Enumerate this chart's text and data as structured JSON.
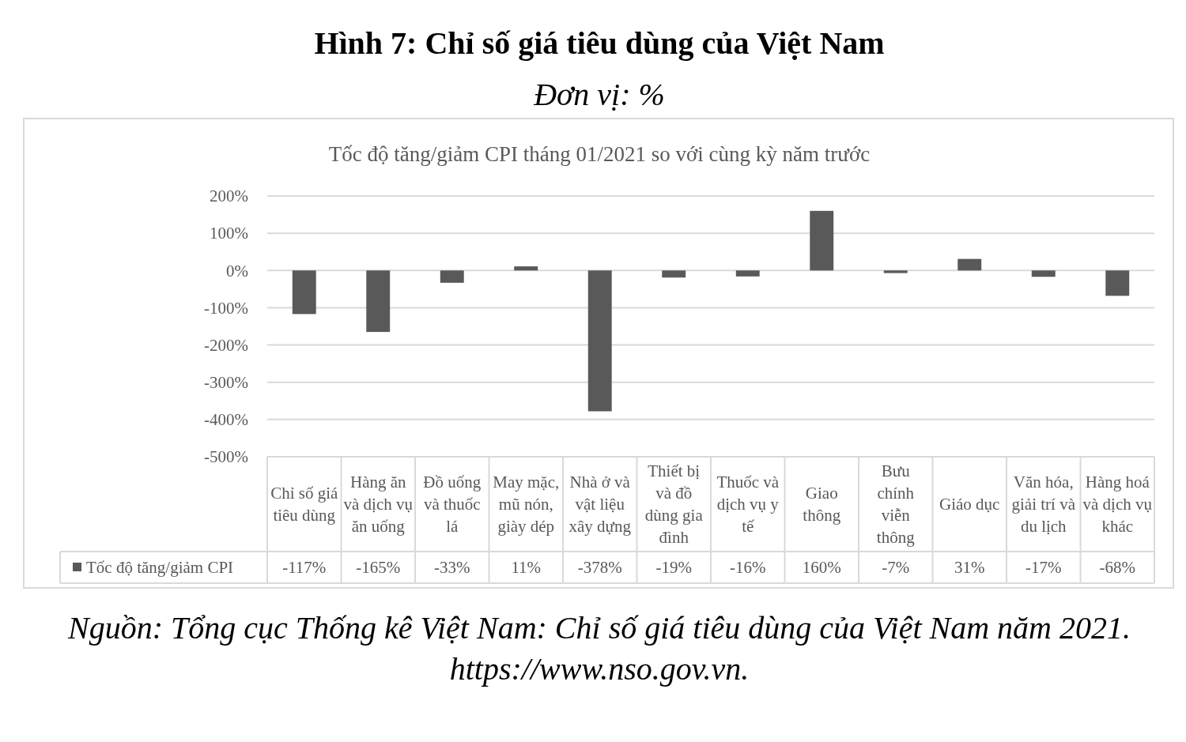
{
  "chart_data": {
    "type": "bar",
    "title": "Hình 7: Chỉ số giá tiêu dùng của Việt Nam",
    "subtitle": "Đơn vị: %",
    "annotations": [
      "Tốc độ tăng/giảm CPI tháng 01/2021  so với cùng kỳ năm trước",
      "Nguồn: Tổng cục Thống kê Việt Nam: Chỉ số giá tiêu dùng của Việt Nam năm 2021. https://www.nso.gov.vn."
    ],
    "categories": [
      "Chỉ số giá tiêu dùng",
      "Hàng ăn và dịch vụ ăn uống",
      "Đồ uống và thuốc lá",
      "May mặc, mũ nón, giày dép",
      "Nhà ở và vật liệu xây dựng",
      "Thiết bị và đồ dùng gia đình",
      "Thuốc và dịch vụ y tế",
      "Giao thông",
      "Bưu chính viễn thông",
      "Giáo dục",
      "Văn hóa, giải trí và du lịch",
      "Hàng hoá và dịch vụ khác"
    ],
    "series": [
      {
        "name": "Tốc độ tăng/giảm  CPI",
        "color": "#595959",
        "values": [
          -117,
          -165,
          -33,
          11,
          -378,
          -19,
          -16,
          160,
          -7,
          31,
          -17,
          -68
        ],
        "value_labels": [
          "-117%",
          "-165%",
          "-33%",
          "11%",
          "-378%",
          "-19%",
          "-16%",
          "160%",
          "-7%",
          "31%",
          "-17%",
          "-68%"
        ]
      }
    ],
    "ylim": [
      -500,
      200
    ],
    "yticks": [
      {
        "value": -500,
        "label": "-500%"
      },
      {
        "value": -400,
        "label": "-400%"
      },
      {
        "value": -300,
        "label": "-300%"
      },
      {
        "value": -200,
        "label": "-200%"
      },
      {
        "value": -100,
        "label": "-100%"
      },
      {
        "value": 0,
        "label": "0%"
      },
      {
        "value": 100,
        "label": "100%"
      },
      {
        "value": 200,
        "label": "200%"
      }
    ],
    "grid": "y",
    "legend": "bottom"
  }
}
